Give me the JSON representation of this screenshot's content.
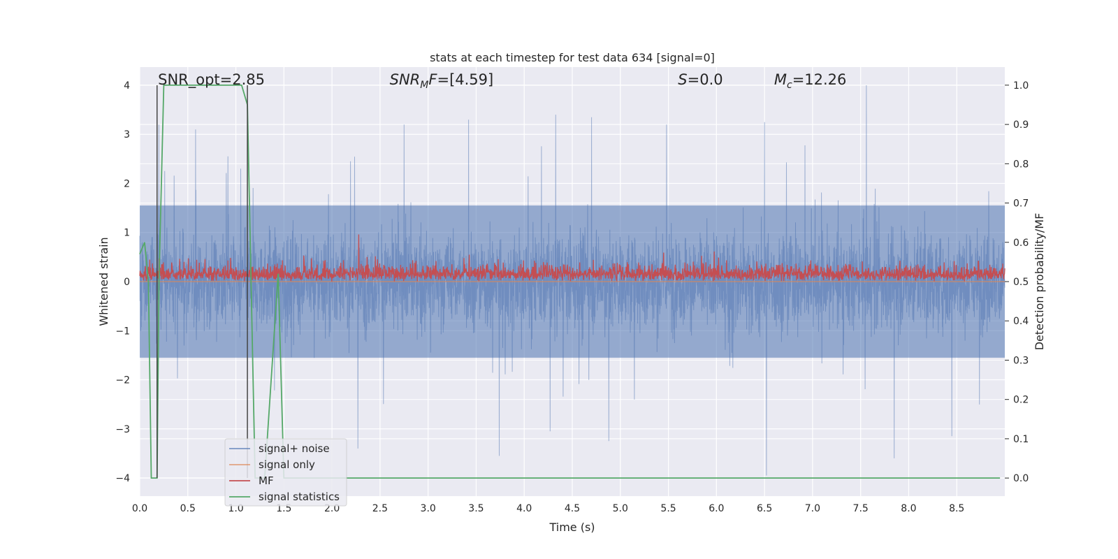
{
  "chart_data": {
    "type": "line",
    "title": "stats at each timestep for test data 634 [signal=0]",
    "xlabel": "Time (s)",
    "ylabel_left": "Whitened strain",
    "ylabel_right": "Detection probability/MF",
    "xlim": [
      0.0,
      9.0
    ],
    "ylim_left": [
      -4.37,
      4.37
    ],
    "ylim_right": [
      -0.046,
      1.046
    ],
    "xticks": [
      0.0,
      0.5,
      1.0,
      1.5,
      2.0,
      2.5,
      3.0,
      3.5,
      4.0,
      4.5,
      5.0,
      5.5,
      6.0,
      6.5,
      7.0,
      7.5,
      8.0,
      8.5
    ],
    "xtick_labels": [
      "0.0",
      "0.5",
      "1.0",
      "1.5",
      "2.0",
      "2.5",
      "3.0",
      "3.5",
      "4.0",
      "4.5",
      "5.0",
      "5.5",
      "6.0",
      "6.5",
      "7.0",
      "7.5",
      "8.0",
      "8.5"
    ],
    "yticks_left": [
      4,
      3,
      2,
      1,
      0,
      -1,
      -2,
      -3,
      -4
    ],
    "ytick_labels_left": [
      "4",
      "3",
      "2",
      "1",
      "0",
      "−1",
      "−2",
      "−3",
      "−4"
    ],
    "yticks_right": [
      1.0,
      0.9,
      0.8,
      0.7,
      0.6,
      0.5,
      0.4,
      0.3,
      0.2,
      0.1,
      0.0
    ],
    "ytick_labels_right": [
      "1.0",
      "0.9",
      "0.8",
      "0.7",
      "0.6",
      "0.5",
      "0.4",
      "0.3",
      "0.2",
      "0.1",
      "0.0"
    ],
    "grid": true,
    "legend_position": "lower-left",
    "annotations": [
      {
        "label": "SNR_opt=2.85",
        "x": 0.19
      },
      {
        "label": "SNR",
        "sub": "M",
        "suffix": "F=[4.59]",
        "italic": true,
        "x": 2.6
      },
      {
        "label": "S",
        "suffix": "=0.0",
        "italic": true,
        "x": 5.6
      },
      {
        "label": "M",
        "sub": "c",
        "suffix": "=12.26",
        "italic": true,
        "x": 6.6
      }
    ],
    "vertical_markers": [
      0.18,
      1.12
    ],
    "series": [
      {
        "name": "signal+ noise",
        "color": "#4c72b0",
        "axis": "left",
        "style": "noise",
        "amplitude_envelope": [
          1.55,
          2.7,
          4.0
        ],
        "peaks": [
          {
            "x": 0.2,
            "y": 3.2
          },
          {
            "x": 1.05,
            "y": 2.3
          },
          {
            "x": 0.58,
            "y": 3.1
          },
          {
            "x": 2.75,
            "y": 3.2
          },
          {
            "x": 3.42,
            "y": 3.3
          },
          {
            "x": 4.7,
            "y": 3.35
          },
          {
            "x": 5.48,
            "y": 3.2
          },
          {
            "x": 6.5,
            "y": 3.25
          },
          {
            "x": 7.56,
            "y": 4.0
          },
          {
            "x": 3.74,
            "y": -3.55
          },
          {
            "x": 6.52,
            "y": -3.95
          },
          {
            "x": 7.85,
            "y": -3.6
          },
          {
            "x": 2.27,
            "y": -3.4
          },
          {
            "x": 4.88,
            "y": -3.25
          },
          {
            "x": 8.45,
            "y": -3.15
          },
          {
            "x": 4.27,
            "y": -3.05
          }
        ]
      },
      {
        "name": "signal only",
        "color": "#dd8452",
        "axis": "left",
        "x": [
          0.0,
          9.0
        ],
        "y": [
          0.0,
          0.0
        ]
      },
      {
        "name": "MF",
        "color": "#c44e52",
        "axis": "right",
        "style": "noise",
        "baseline": 0.5,
        "range": [
          0.5,
          0.62
        ],
        "peaks": [
          {
            "x": 2.28,
            "y": 0.62
          }
        ]
      },
      {
        "name": "signal statistics",
        "color": "#55a868",
        "axis": "right",
        "x": [
          0.0,
          0.05,
          0.09,
          0.12,
          0.18,
          0.2,
          0.25,
          1.0,
          1.06,
          1.12,
          1.2,
          1.3,
          1.44,
          1.5,
          8.95
        ],
        "y": [
          0.57,
          0.6,
          0.5,
          0.0,
          0.0,
          0.5,
          1.0,
          1.0,
          1.0,
          0.95,
          0.0,
          0.0,
          0.52,
          0.0,
          0.0
        ]
      }
    ]
  }
}
